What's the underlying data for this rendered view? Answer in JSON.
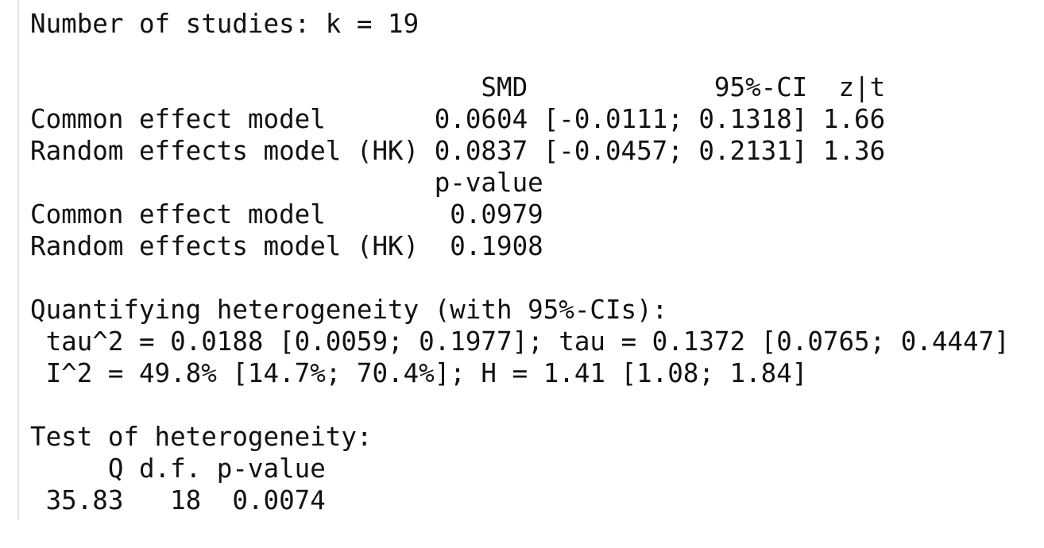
{
  "blocks": [
    [
      "Number of studies: k = 19"
    ],
    [
      "                             SMD            95%-CI  z|t",
      "Common effect model       0.0604 [-0.0111; 0.1318] 1.66",
      "Random effects model (HK) 0.0837 [-0.0457; 0.2131] 1.36",
      "                          p-value",
      "Common effect model        0.0979",
      "Random effects model (HK)  0.1908"
    ],
    [
      "Quantifying heterogeneity (with 95%-CIs):",
      " tau^2 = 0.0188 [0.0059; 0.1977]; tau = 0.1372 [0.0765; 0.4447]",
      " I^2 = 49.8% [14.7%; 70.4%]; H = 1.41 [1.08; 1.84]"
    ],
    [
      "Test of heterogeneity:",
      "     Q d.f. p-value",
      " 35.83   18  0.0074"
    ]
  ]
}
